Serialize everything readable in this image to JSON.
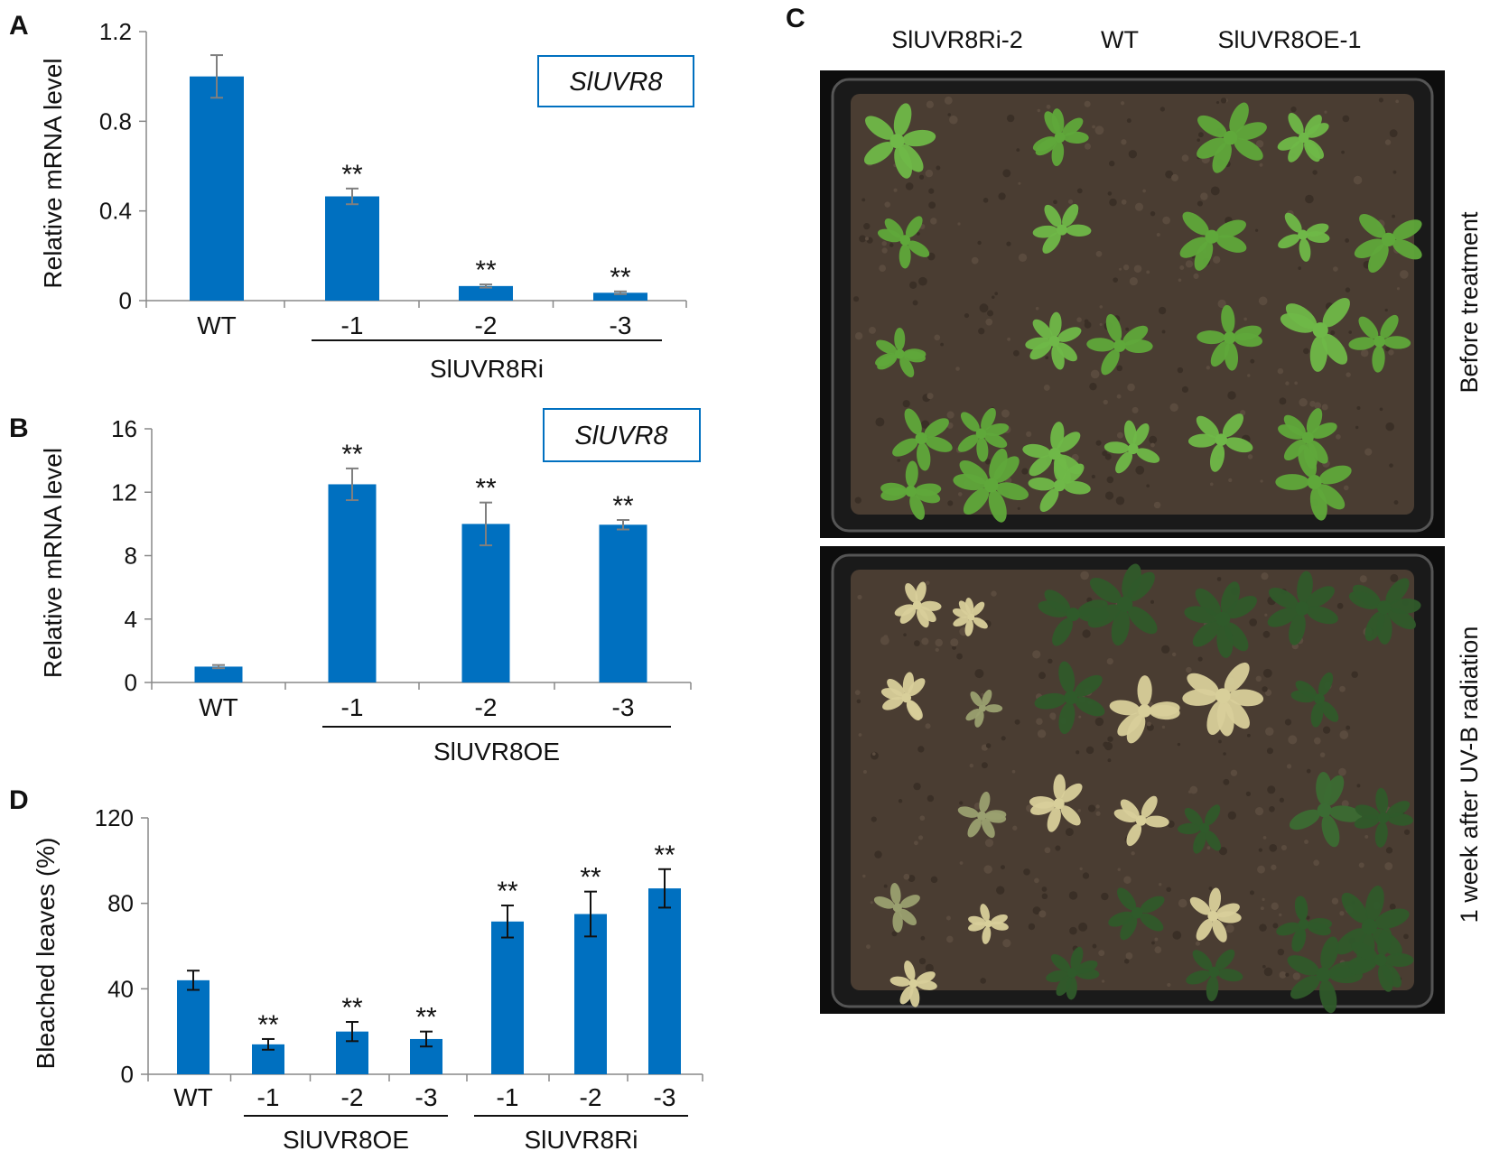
{
  "colors": {
    "bar": "#0070C0",
    "error_bar_gray": "#7f7f7f",
    "error_bar_black": "#111111",
    "axis": "#888888",
    "tray_dark": "#1a1a1a",
    "soil": "#4a3d32",
    "leaf_green": "#5fa83a",
    "leaf_dark": "#2f5a2a",
    "leaf_bleached": "#d8cf9a"
  },
  "panel_labels": {
    "a": "A",
    "b": "B",
    "c": "C",
    "d": "D"
  },
  "sig_mark": "**",
  "chart_data": [
    {
      "id": "A",
      "type": "bar",
      "ylabel": "Relative mRNA level",
      "ylim": [
        0,
        1.2
      ],
      "yticks": [
        "0",
        "0.4",
        "0.8",
        "1.2"
      ],
      "ytick_values": [
        0,
        0.4,
        0.8,
        1.2
      ],
      "categories": [
        "WT",
        "-1",
        "-2",
        "-3"
      ],
      "values": [
        1.0,
        0.465,
        0.065,
        0.035
      ],
      "errors": [
        0.095,
        0.035,
        0.007,
        0.006
      ],
      "significance": [
        "",
        "**",
        "**",
        "**"
      ],
      "groups": [
        {
          "label": "SlUVR8Ri",
          "from": 1,
          "to": 3
        }
      ],
      "legend_box": "SlUVR8",
      "error_color": "gray"
    },
    {
      "id": "B",
      "type": "bar",
      "ylabel": "Relative mRNA level",
      "ylim": [
        0,
        16
      ],
      "yticks": [
        "0",
        "4",
        "8",
        "12",
        "16"
      ],
      "ytick_values": [
        0,
        4,
        8,
        12,
        16
      ],
      "categories": [
        "WT",
        "-1",
        "-2",
        "-3"
      ],
      "values": [
        1.0,
        12.5,
        10.0,
        9.95
      ],
      "errors": [
        0.1,
        1.0,
        1.35,
        0.3
      ],
      "significance": [
        "",
        "**",
        "**",
        "**"
      ],
      "groups": [
        {
          "label": "SlUVR8OE",
          "from": 1,
          "to": 3
        }
      ],
      "legend_box": "SlUVR8",
      "error_color": "gray"
    },
    {
      "id": "D",
      "type": "bar",
      "ylabel": "Bleached leaves (%)",
      "ylim": [
        0,
        120
      ],
      "yticks": [
        "0",
        "40",
        "80",
        "120"
      ],
      "ytick_values": [
        0,
        40,
        80,
        120
      ],
      "categories": [
        "WT",
        "-1",
        "-2",
        "-3",
        "-1",
        "-2",
        "-3"
      ],
      "values": [
        44,
        14,
        20,
        16.5,
        71.5,
        75,
        87
      ],
      "errors": [
        4.5,
        2.5,
        4.5,
        3.5,
        7.5,
        10.5,
        9
      ],
      "significance": [
        "",
        "**",
        "**",
        "**",
        "**",
        "**",
        "**"
      ],
      "groups": [
        {
          "label": "SlUVR8OE",
          "from": 1,
          "to": 3
        },
        {
          "label": "SlUVR8Ri",
          "from": 4,
          "to": 6
        }
      ],
      "error_color": "black"
    }
  ],
  "photo": {
    "column_labels": [
      "SlUVR8Ri-2",
      "WT",
      "SlUVR8OE-1"
    ],
    "top_label": "Before treatment",
    "bottom_label": "1 week after UV-B radiation"
  }
}
